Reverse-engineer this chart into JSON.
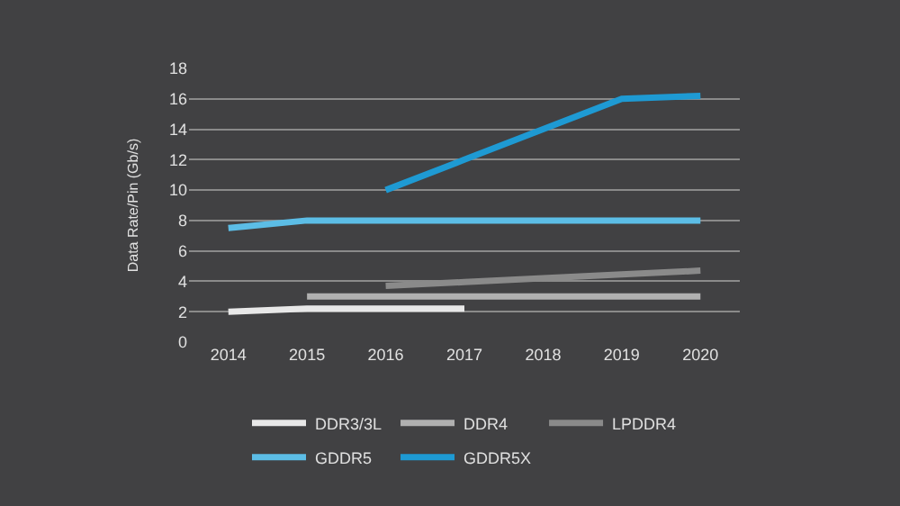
{
  "chart_data": {
    "type": "line",
    "ylabel": "Data Rate/Pin (Gb/s)",
    "categories": [
      "2014",
      "2015",
      "2016",
      "2017",
      "2018",
      "2019",
      "2020"
    ],
    "ylim": [
      0,
      18
    ],
    "yticks": [
      0,
      2,
      4,
      6,
      8,
      10,
      12,
      14,
      16,
      18
    ],
    "grid": "y",
    "legend": "bottom",
    "marker": "none",
    "line_style": "solid",
    "series": [
      {
        "name": "DDR3/3L",
        "color": "#e8e8e8",
        "values": [
          2.0,
          2.2,
          2.2,
          2.2,
          null,
          null,
          null
        ]
      },
      {
        "name": "DDR4",
        "color": "#b0b0b0",
        "values": [
          null,
          3.0,
          3.0,
          3.0,
          3.0,
          3.0,
          3.0
        ]
      },
      {
        "name": "LPDDR4",
        "color": "#8a8a8a",
        "values": [
          null,
          null,
          3.7,
          3.95,
          4.2,
          4.45,
          4.7
        ]
      },
      {
        "name": "GDDR5",
        "color": "#5cbde6",
        "values": [
          7.5,
          8.0,
          8.0,
          8.0,
          8.0,
          8.0,
          8.0
        ]
      },
      {
        "name": "GDDR5X",
        "color": "#1e9ad3",
        "values": [
          null,
          null,
          10.0,
          12.0,
          14.0,
          16.0,
          16.2
        ]
      }
    ]
  }
}
